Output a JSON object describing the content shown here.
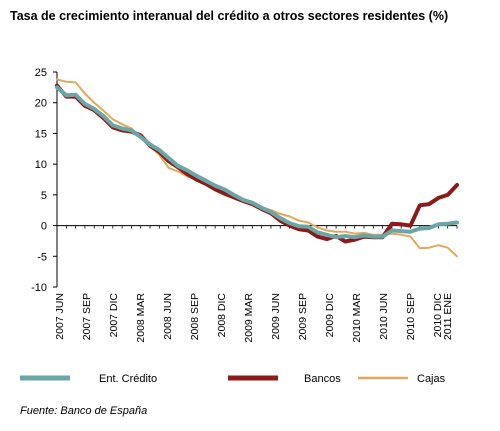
{
  "title": "Tasa de crecimiento interanual del crédito a otros sectores residentes (%)",
  "source": "Fuente: Banco de España",
  "chart_data": {
    "type": "line",
    "ylim": [
      -10,
      25
    ],
    "yticks": [
      25,
      20,
      15,
      10,
      5,
      0,
      -5,
      -10
    ],
    "grid": false,
    "legend_position": "bottom",
    "x_tick_labels": [
      "2007 JUN",
      "2007 SEP",
      "2007 DIC",
      "2008 MAR",
      "2008 JUN",
      "2008 SEP",
      "2008 DIC",
      "2009 MAR",
      "2009 JUN",
      "2009 SEP",
      "2009 DIC",
      "2010 MAR",
      "2010 JUN",
      "2010 SEP",
      "2010 DIC",
      "2011 ENE"
    ],
    "x": [
      "2007-06",
      "2007-07",
      "2007-08",
      "2007-09",
      "2007-10",
      "2007-11",
      "2007-12",
      "2008-01",
      "2008-02",
      "2008-03",
      "2008-04",
      "2008-05",
      "2008-06",
      "2008-07",
      "2008-08",
      "2008-09",
      "2008-10",
      "2008-11",
      "2008-12",
      "2009-01",
      "2009-02",
      "2009-03",
      "2009-04",
      "2009-05",
      "2009-06",
      "2009-07",
      "2009-08",
      "2009-09",
      "2009-10",
      "2009-11",
      "2009-12",
      "2010-01",
      "2010-02",
      "2010-03",
      "2010-04",
      "2010-05",
      "2010-06",
      "2010-07",
      "2010-08",
      "2010-09",
      "2010-10",
      "2010-11",
      "2010-12",
      "2011-01"
    ],
    "series": [
      {
        "name": "Ent. Crédito",
        "color": "#6aa6a6",
        "values": [
          22.5,
          21.2,
          21.3,
          19.8,
          19.0,
          17.8,
          16.3,
          15.8,
          15.5,
          14.4,
          13.2,
          12.3,
          11.0,
          9.7,
          9.0,
          8.1,
          7.3,
          6.5,
          5.9,
          5.0,
          4.2,
          3.7,
          2.9,
          2.2,
          1.2,
          0.4,
          -0.1,
          -0.2,
          -1.1,
          -1.5,
          -1.9,
          -1.7,
          -1.9,
          -1.6,
          -1.8,
          -1.8,
          -0.8,
          -0.9,
          -1.0,
          -0.5,
          -0.4,
          0.2,
          0.3,
          0.5
        ]
      },
      {
        "name": "Bancos",
        "color": "#8b1a1a",
        "values": [
          22.8,
          21.0,
          21.0,
          19.5,
          18.8,
          17.5,
          16.0,
          15.5,
          15.3,
          14.7,
          13.0,
          12.0,
          10.5,
          9.5,
          8.4,
          7.5,
          6.8,
          5.9,
          5.2,
          4.6,
          4.0,
          3.5,
          2.7,
          2.0,
          0.8,
          0.0,
          -0.6,
          -0.8,
          -1.8,
          -2.2,
          -1.7,
          -2.6,
          -2.3,
          -1.8,
          -1.9,
          -1.9,
          0.3,
          0.2,
          0.0,
          3.3,
          3.5,
          4.5,
          5.0,
          6.6
        ]
      },
      {
        "name": "Cajas",
        "color": "#e3a85a",
        "values": [
          23.8,
          23.4,
          23.3,
          21.5,
          20.0,
          18.7,
          17.3,
          16.5,
          15.8,
          14.5,
          13.0,
          11.5,
          9.4,
          8.8,
          8.0,
          7.5,
          6.7,
          5.9,
          5.2,
          4.6,
          4.1,
          3.6,
          3.0,
          2.5,
          1.9,
          1.5,
          0.8,
          0.5,
          -0.3,
          -0.8,
          -1.0,
          -1.0,
          -1.3,
          -1.2,
          -1.5,
          -1.5,
          -1.3,
          -1.5,
          -1.8,
          -3.7,
          -3.6,
          -3.2,
          -3.6,
          -5.0
        ]
      }
    ]
  }
}
